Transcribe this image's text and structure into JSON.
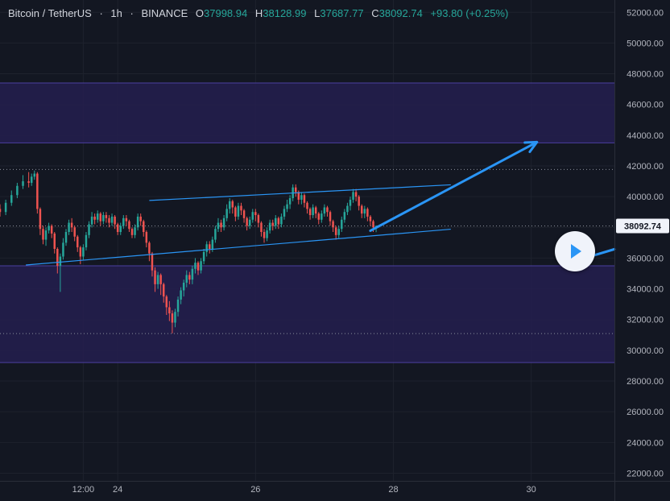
{
  "header": {
    "symbol": "Bitcoin / TetherUS",
    "interval": "1h",
    "exchange": "BINANCE",
    "sep1": "·",
    "sep2": "·",
    "open_label": "O",
    "open": "37998.94",
    "high_label": "H",
    "high": "38128.99",
    "low_label": "L",
    "low": "37687.77",
    "close_label": "C",
    "close": "38092.74",
    "change": "+93.80 (+0.25%)"
  },
  "colors": {
    "background": "#131722",
    "grid": "#1e222d",
    "up": "#26a69a",
    "down": "#ef5350",
    "zone_fill": "#241f4f",
    "zone_border": "#4b3fa0",
    "channel_line": "#2a95f5",
    "arrow": "#2a95f5",
    "axis_text": "#b2b5be",
    "price_label_bg": "#f0f3fa",
    "price_label_text": "#131722"
  },
  "play_button": {
    "icon": "play-icon"
  },
  "chart_data": {
    "type": "candlestick",
    "title": "Bitcoin / TetherUS · 1h · BINANCE",
    "y_axis": {
      "ticks": [
        "52000.00",
        "50000.00",
        "48000.00",
        "46000.00",
        "44000.00",
        "42000.00",
        "40000.00",
        "38000.00",
        "36000.00",
        "34000.00",
        "32000.00",
        "30000.00",
        "28000.00",
        "26000.00",
        "24000.00",
        "22000.00"
      ],
      "ylim": [
        21500,
        52800
      ]
    },
    "x_axis": {
      "ticks": [
        "12:00",
        "24",
        "26",
        "28",
        "30"
      ],
      "tick_hours": [
        12,
        24,
        72,
        120,
        168
      ],
      "range_hours": [
        -17,
        197
      ]
    },
    "current_price": "38092.74",
    "current_price_value": 38092.74,
    "horizontal_dotted_levels": [
      41770,
      38092.74,
      31090
    ],
    "zones": [
      {
        "name": "resistance-zone",
        "from": 43500,
        "to": 47400
      },
      {
        "name": "support-zone",
        "from": 29200,
        "to": 35500
      }
    ],
    "channel": {
      "upper": {
        "from": [
          35,
          39750
        ],
        "to": [
          140,
          40770
        ]
      },
      "lower": {
        "from": [
          -8,
          35550
        ],
        "to": [
          140,
          37880
        ]
      }
    },
    "projection_arrows": [
      {
        "from": [
          112,
          37780
        ],
        "to": [
          170,
          43550
        ]
      },
      {
        "from": [
          187,
          36020
        ],
        "to": [
          197,
          36580
        ]
      }
    ],
    "candles": [
      [
        -17,
        39200,
        39000,
        39500,
        38700
      ],
      [
        -15,
        39000,
        39600,
        39800,
        38800
      ],
      [
        -13,
        39600,
        40100,
        40400,
        39400
      ],
      [
        -11,
        40100,
        40700,
        40900,
        39900
      ],
      [
        -9,
        40700,
        41000,
        41400,
        40500
      ],
      [
        -7,
        41000,
        40900,
        41600,
        40600
      ],
      [
        -6,
        40900,
        41300,
        41500,
        40700
      ],
      [
        -5,
        41300,
        41500,
        41700,
        41100
      ],
      [
        -4,
        41500,
        39200,
        41600,
        38900
      ],
      [
        -3,
        39200,
        37900,
        39300,
        37500
      ],
      [
        -2,
        37900,
        37200,
        38100,
        36900
      ],
      [
        -1,
        37200,
        37800,
        38000,
        36800
      ],
      [
        0,
        37800,
        38100,
        38300,
        37600
      ],
      [
        1,
        38100,
        37600,
        38200,
        37300
      ],
      [
        2,
        37600,
        36600,
        37700,
        36300
      ],
      [
        3,
        36600,
        35500,
        36700,
        35000
      ],
      [
        4,
        35500,
        36100,
        36300,
        33800
      ],
      [
        5,
        36100,
        37000,
        37300,
        35900
      ],
      [
        6,
        37000,
        37700,
        37900,
        36800
      ],
      [
        7,
        37700,
        38300,
        38500,
        37500
      ],
      [
        8,
        38300,
        38000,
        38600,
        37700
      ],
      [
        9,
        38000,
        37400,
        38100,
        37100
      ],
      [
        10,
        37400,
        36700,
        37500,
        36400
      ],
      [
        11,
        36700,
        36100,
        36800,
        35600
      ],
      [
        12,
        36100,
        36700,
        36900,
        35900
      ],
      [
        13,
        36700,
        37500,
        37700,
        36500
      ],
      [
        14,
        37500,
        38200,
        38400,
        37300
      ],
      [
        15,
        38200,
        38700,
        39000,
        38000
      ],
      [
        16,
        38700,
        38500,
        38900,
        38200
      ],
      [
        17,
        38500,
        38900,
        39100,
        38300
      ],
      [
        18,
        38900,
        38400,
        39000,
        38100
      ],
      [
        19,
        38400,
        38800,
        39000,
        38200
      ],
      [
        20,
        38800,
        38600,
        39000,
        38300
      ],
      [
        21,
        38600,
        38300,
        38800,
        38000
      ],
      [
        22,
        38300,
        38700,
        38900,
        38100
      ],
      [
        23,
        38700,
        38200,
        38800,
        37900
      ],
      [
        24,
        38200,
        37700,
        38300,
        37500
      ],
      [
        25,
        37700,
        38100,
        38300,
        37500
      ],
      [
        26,
        38100,
        38600,
        38800,
        37900
      ],
      [
        27,
        38600,
        38400,
        38800,
        38100
      ],
      [
        28,
        38400,
        37900,
        38500,
        37700
      ],
      [
        29,
        37900,
        37500,
        38000,
        37300
      ],
      [
        30,
        37500,
        38000,
        38200,
        37300
      ],
      [
        31,
        38000,
        38700,
        38900,
        37800
      ],
      [
        32,
        38700,
        38400,
        38900,
        38100
      ],
      [
        33,
        38400,
        37700,
        38500,
        37400
      ],
      [
        34,
        37700,
        37000,
        37800,
        36700
      ],
      [
        35,
        37000,
        36300,
        37100,
        35800
      ],
      [
        36,
        36300,
        35200,
        36400,
        34800
      ],
      [
        37,
        35200,
        34300,
        35400,
        33800
      ],
      [
        38,
        34300,
        34900,
        35100,
        34000
      ],
      [
        39,
        34900,
        34300,
        35000,
        33600
      ],
      [
        40,
        34300,
        33500,
        34400,
        33100
      ],
      [
        41,
        33500,
        32800,
        33600,
        32300
      ],
      [
        42,
        32800,
        32400,
        33200,
        31900
      ],
      [
        43,
        32400,
        31800,
        32600,
        31100
      ],
      [
        44,
        31800,
        32500,
        32700,
        31500
      ],
      [
        45,
        32500,
        33300,
        33500,
        32200
      ],
      [
        46,
        33300,
        33900,
        34100,
        33000
      ],
      [
        47,
        33900,
        34400,
        34600,
        33500
      ],
      [
        48,
        34400,
        34900,
        35200,
        34100
      ],
      [
        49,
        34900,
        34600,
        35100,
        34300
      ],
      [
        50,
        34600,
        35300,
        35500,
        34300
      ],
      [
        51,
        35300,
        35700,
        36000,
        35000
      ],
      [
        52,
        35700,
        35200,
        35800,
        34900
      ],
      [
        53,
        35200,
        35800,
        36000,
        35000
      ],
      [
        54,
        35800,
        36400,
        36600,
        35600
      ],
      [
        55,
        36400,
        36900,
        37100,
        36100
      ],
      [
        56,
        36900,
        36600,
        37100,
        36300
      ],
      [
        57,
        36600,
        37200,
        37400,
        36400
      ],
      [
        58,
        37200,
        37900,
        38100,
        37000
      ],
      [
        59,
        37900,
        38300,
        38600,
        37700
      ],
      [
        60,
        38300,
        38000,
        38500,
        37700
      ],
      [
        61,
        38000,
        38600,
        38800,
        37800
      ],
      [
        62,
        38600,
        39200,
        39500,
        38400
      ],
      [
        63,
        39200,
        39700,
        39900,
        38900
      ],
      [
        64,
        39700,
        39300,
        39800,
        38900
      ],
      [
        65,
        39300,
        38700,
        39400,
        38400
      ],
      [
        66,
        38700,
        39400,
        39600,
        38500
      ],
      [
        67,
        39400,
        39100,
        39600,
        38800
      ],
      [
        68,
        39100,
        38600,
        39200,
        38300
      ],
      [
        69,
        38600,
        38100,
        38700,
        37800
      ],
      [
        70,
        38100,
        38500,
        38700,
        37900
      ],
      [
        71,
        38500,
        39000,
        39200,
        38300
      ],
      [
        72,
        39000,
        38800,
        39200,
        38400
      ],
      [
        73,
        38800,
        38300,
        38900,
        38000
      ],
      [
        74,
        38300,
        37700,
        38400,
        37400
      ],
      [
        75,
        37700,
        37300,
        37900,
        37000
      ],
      [
        76,
        37300,
        37800,
        38000,
        37100
      ],
      [
        77,
        37800,
        38300,
        38500,
        37600
      ],
      [
        78,
        38300,
        38100,
        38500,
        37800
      ],
      [
        79,
        38100,
        38600,
        38800,
        37900
      ],
      [
        80,
        38600,
        38200,
        38700,
        37900
      ],
      [
        81,
        38200,
        38700,
        38900,
        38000
      ],
      [
        82,
        38700,
        39200,
        39400,
        38500
      ],
      [
        83,
        39200,
        39500,
        39800,
        39000
      ],
      [
        84,
        39500,
        39900,
        40100,
        39200
      ],
      [
        85,
        39900,
        40600,
        40800,
        39700
      ],
      [
        86,
        40600,
        40300,
        40800,
        40000
      ],
      [
        87,
        40300,
        39800,
        40400,
        39500
      ],
      [
        88,
        39800,
        40100,
        40300,
        39500
      ],
      [
        89,
        40100,
        39600,
        40200,
        39300
      ],
      [
        90,
        39600,
        39200,
        39700,
        38900
      ],
      [
        91,
        39200,
        38800,
        39300,
        38500
      ],
      [
        92,
        38800,
        39300,
        39500,
        38600
      ],
      [
        93,
        39300,
        38900,
        39400,
        38600
      ],
      [
        94,
        38900,
        38500,
        39000,
        38200
      ],
      [
        95,
        38500,
        38900,
        39100,
        38300
      ],
      [
        96,
        38900,
        39300,
        39500,
        38700
      ],
      [
        97,
        39300,
        39000,
        39400,
        38700
      ],
      [
        98,
        39000,
        38400,
        39100,
        38100
      ],
      [
        99,
        38400,
        38000,
        38500,
        37700
      ],
      [
        100,
        38000,
        37500,
        38100,
        37200
      ],
      [
        101,
        37500,
        37900,
        38100,
        37300
      ],
      [
        102,
        37900,
        38500,
        38700,
        37700
      ],
      [
        103,
        38500,
        39000,
        39200,
        38300
      ],
      [
        104,
        39000,
        39400,
        39600,
        38800
      ],
      [
        105,
        39400,
        39800,
        40000,
        39100
      ],
      [
        106,
        39800,
        40300,
        40500,
        39600
      ],
      [
        107,
        40300,
        40000,
        40500,
        39700
      ],
      [
        108,
        40000,
        39400,
        40100,
        39100
      ],
      [
        109,
        39400,
        38900,
        39500,
        38600
      ],
      [
        110,
        38900,
        39200,
        39400,
        38600
      ],
      [
        111,
        39200,
        38700,
        39300,
        38400
      ],
      [
        112,
        38700,
        38400,
        38800,
        38100
      ],
      [
        113,
        38400,
        38000,
        38500,
        37700
      ],
      [
        114,
        38000,
        38093,
        38129,
        37688
      ]
    ]
  }
}
